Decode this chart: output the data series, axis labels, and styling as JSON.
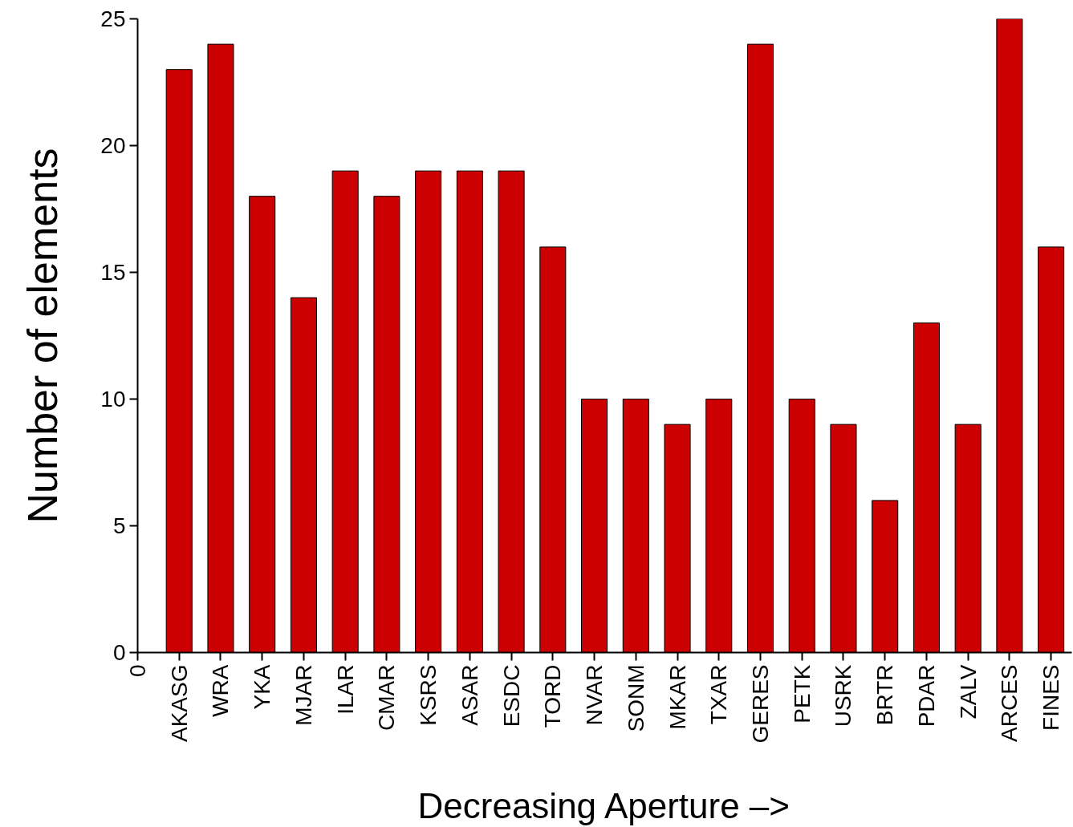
{
  "chart_data": {
    "type": "bar",
    "xlabel": "Decreasing Aperture –>",
    "ylabel": "Number of elements",
    "categories": [
      "0",
      "AKASG",
      "WRA",
      "YKA",
      "MJAR",
      "ILAR",
      "CMAR",
      "KSRS",
      "ASAR",
      "ESDC",
      "TORD",
      "NVAR",
      "SONM",
      "MKAR",
      "TXAR",
      "GERES",
      "PETK",
      "USRK",
      "BRTR",
      "PDAR",
      "ZALV",
      "ARCES",
      "FINES"
    ],
    "values": [
      null,
      23,
      24,
      18,
      14,
      19,
      18,
      19,
      19,
      19,
      16,
      10,
      10,
      9,
      10,
      24,
      10,
      9,
      6,
      13,
      9,
      25,
      16
    ],
    "color": "#cc0000",
    "ylim": [
      0,
      25
    ],
    "yticks": [
      0,
      5,
      10,
      15,
      20,
      25
    ],
    "grid": false
  }
}
